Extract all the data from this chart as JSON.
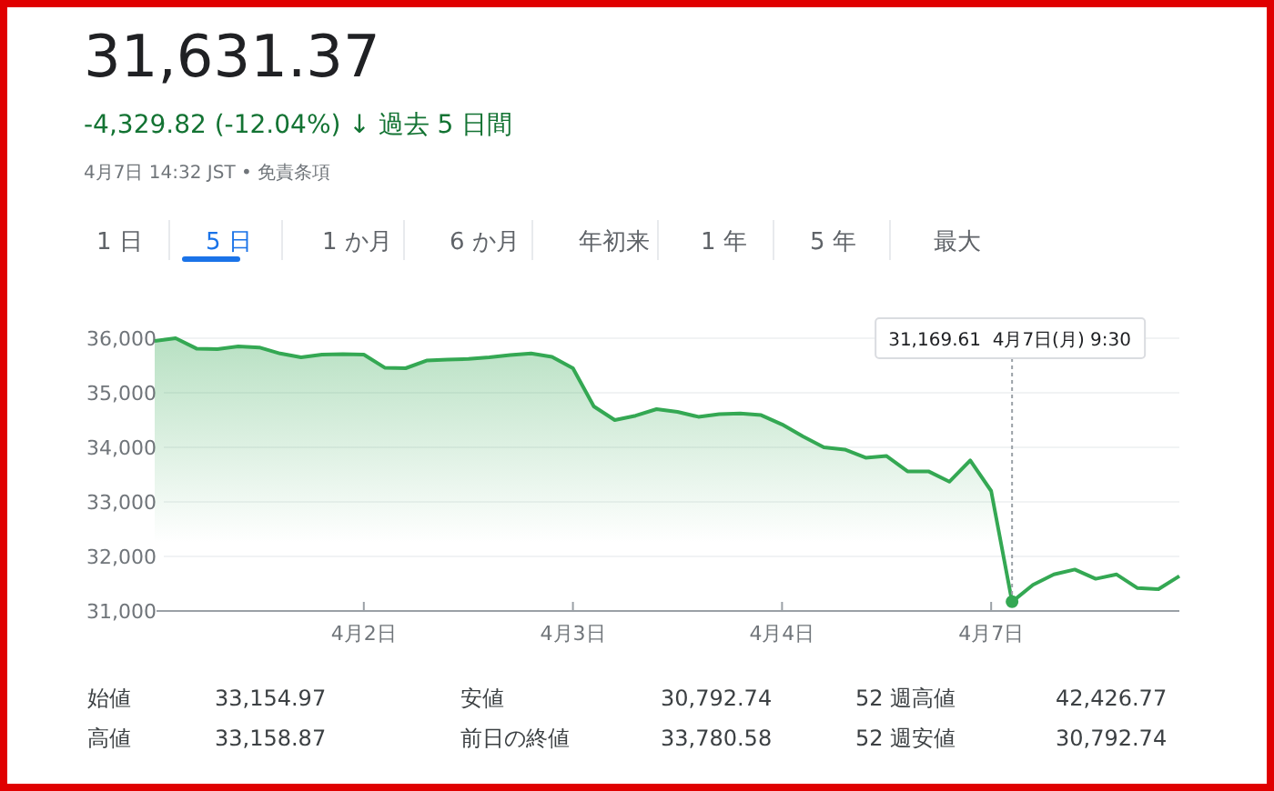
{
  "chart_data": {
    "type": "area",
    "title": "31,631.37",
    "subtitle": "-4,329.82 (-12.04%) ↓ 過去 5 日間",
    "annotations": [
      "4月7日 14:32 JST • 免責条項",
      "1 日",
      "5 日",
      "1 か月",
      "6 か月",
      "年初来",
      "1 年",
      "5 年",
      "最大",
      "始値",
      "33,154.97",
      "安値",
      "30,792.74",
      "52 週高値",
      "42,426.77",
      "高値",
      "33,158.87",
      "前日の終値",
      "33,780.58",
      "52 週安値",
      "30,792.74",
      {
        "text": "31,169.61  4月7日(月) 9:30",
        "y": 31169.61
      }
    ],
    "categories": [
      null,
      null,
      null,
      null,
      null,
      null,
      null,
      null,
      null,
      null,
      "4月2日",
      null,
      null,
      null,
      null,
      null,
      null,
      null,
      null,
      null,
      "4月3日",
      null,
      null,
      null,
      null,
      null,
      null,
      null,
      null,
      null,
      "4月4日",
      null,
      null,
      null,
      null,
      null,
      null,
      null,
      null,
      null,
      "4月7日",
      null,
      null,
      null,
      null,
      null,
      null,
      null,
      null,
      null
    ],
    "series": [
      {
        "color": "#34a853",
        "values": [
          35950,
          36000,
          35810,
          35800,
          35850,
          35830,
          35720,
          35650,
          35700,
          35710,
          35700,
          35460,
          35450,
          35590,
          35610,
          35620,
          35650,
          35690,
          35720,
          35660,
          35450,
          34750,
          34500,
          34580,
          34700,
          34650,
          34560,
          34610,
          34620,
          34590,
          34420,
          34200,
          34000,
          33960,
          33810,
          33840,
          33560,
          33560,
          33370,
          33760,
          33200,
          31169.61,
          31480,
          31670,
          31760,
          31590,
          31670,
          31420,
          31400,
          31640
        ]
      }
    ],
    "ylim": [
      31000,
      36000
    ],
    "yticks": [
      {
        "value": 31000,
        "label": "31,000"
      },
      {
        "value": 32000,
        "label": "32,000"
      },
      {
        "value": 33000,
        "label": "33,000"
      },
      {
        "value": 34000,
        "label": "34,000"
      },
      {
        "value": 35000,
        "label": "35,000"
      },
      {
        "value": 36000,
        "label": "36,000"
      }
    ],
    "grid": "y"
  }
}
